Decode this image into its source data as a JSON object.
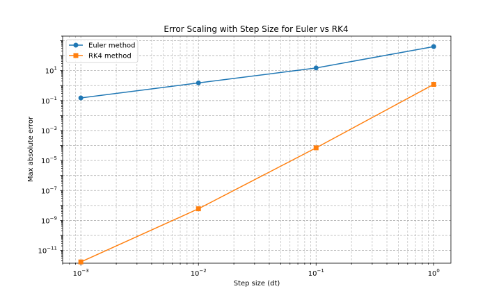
{
  "chart_data": {
    "type": "line",
    "title": "Error Scaling with Step Size for Euler vs RK4",
    "xlabel": "Step size (dt)",
    "ylabel": "Max absolute error",
    "xscale": "log",
    "yscale": "log",
    "xlim": [
      0.0007,
      1.4
    ],
    "ylim": [
      1.4e-12,
      2000
    ],
    "grid": true,
    "grid_style": "dashed, major and minor",
    "legend_position": "top-left",
    "x": [
      0.001,
      0.01,
      0.1,
      1
    ],
    "x_ticks": [
      {
        "value": 0.001,
        "base": "10",
        "exp": "−3"
      },
      {
        "value": 0.01,
        "base": "10",
        "exp": "−2"
      },
      {
        "value": 0.1,
        "base": "10",
        "exp": "−1"
      },
      {
        "value": 1,
        "base": "10",
        "exp": "0"
      }
    ],
    "y_ticks": [
      {
        "value": 1e-11,
        "base": "10",
        "exp": "−11"
      },
      {
        "value": 1e-09,
        "base": "10",
        "exp": "−9"
      },
      {
        "value": 1e-07,
        "base": "10",
        "exp": "−7"
      },
      {
        "value": 1e-05,
        "base": "10",
        "exp": "−5"
      },
      {
        "value": 0.001,
        "base": "10",
        "exp": "−3"
      },
      {
        "value": 0.1,
        "base": "10",
        "exp": "−1"
      },
      {
        "value": 10,
        "base": "10",
        "exp": "1"
      }
    ],
    "series": [
      {
        "name": "Euler method",
        "color": "#1f77b4",
        "marker": "circle",
        "values": [
          0.15,
          1.5,
          15,
          400
        ]
      },
      {
        "name": "RK4 method",
        "color": "#ff7f0e",
        "marker": "square",
        "values": [
          1.7e-12,
          6e-09,
          7e-05,
          1.2
        ]
      }
    ]
  }
}
